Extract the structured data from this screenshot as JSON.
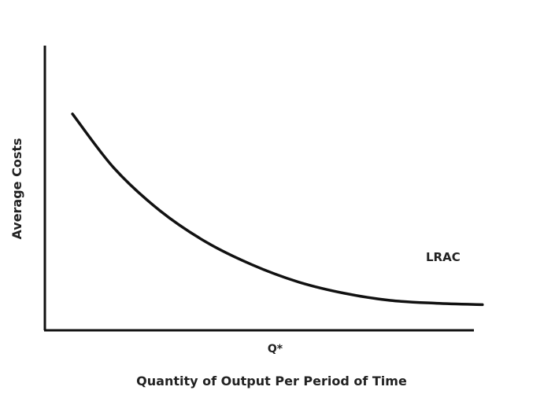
{
  "chart_data": {
    "type": "line",
    "title": "",
    "xlabel": "Quantity of Output Per Period of Time",
    "ylabel": "Average Costs",
    "x_ticks": [
      {
        "x": 5.0,
        "label": "Q*"
      }
    ],
    "xlim": [
      0,
      10
    ],
    "ylim": [
      0,
      10
    ],
    "grid": false,
    "line_color": "#111111",
    "series": [
      {
        "name": "LRAC",
        "x": [
          0.6,
          1.5,
          2.5,
          3.5,
          4.5,
          5.5,
          6.5,
          7.5,
          8.5,
          9.5
        ],
        "y": [
          7.6,
          5.7,
          4.2,
          3.1,
          2.3,
          1.7,
          1.3,
          1.05,
          0.95,
          0.9
        ]
      }
    ]
  }
}
